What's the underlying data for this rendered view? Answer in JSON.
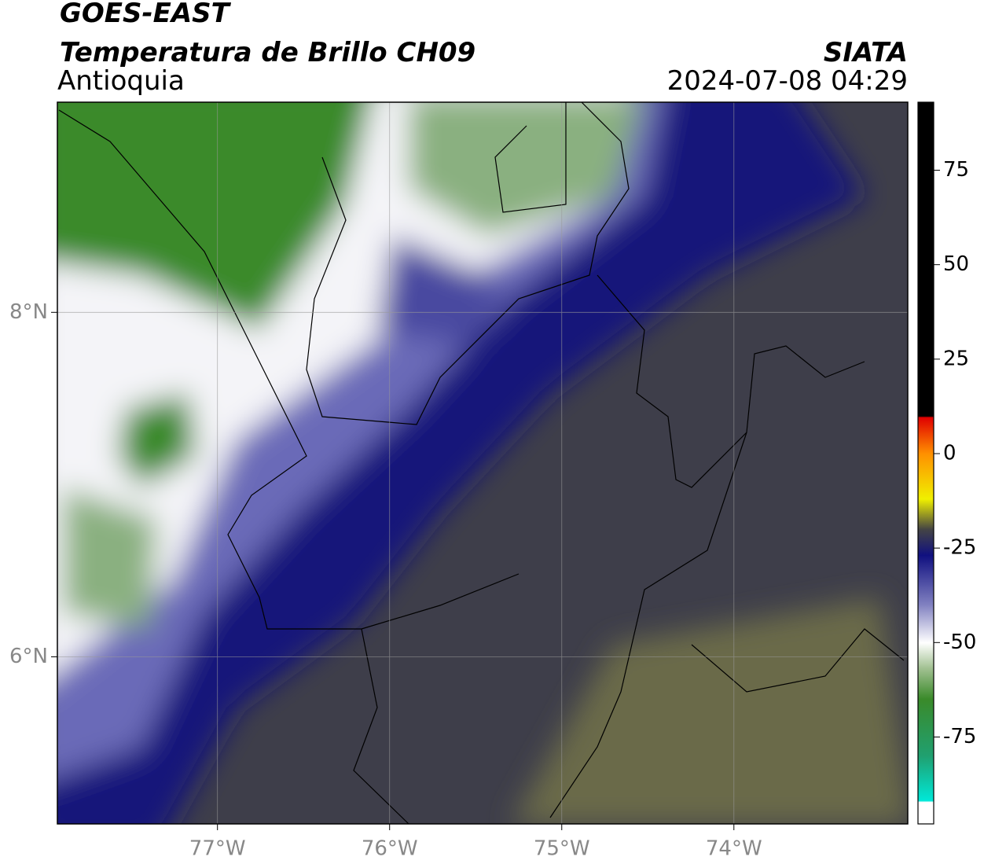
{
  "title": "GOES-EAST",
  "subtitle": "Temperatura de Brillo CH09",
  "region": "Antioquia",
  "source": "SIATA",
  "timestamp": "2024-07-08 04:29",
  "map": {
    "xlim": [
      -77.93,
      -72.99
    ],
    "ylim": [
      5.03,
      9.22
    ],
    "xticks": [
      {
        "value": -77,
        "label": "77°W"
      },
      {
        "value": -76,
        "label": "76°W"
      },
      {
        "value": -75,
        "label": "75°W"
      },
      {
        "value": -74,
        "label": "74°W"
      }
    ],
    "yticks": [
      {
        "value": 8,
        "label": "8°N"
      },
      {
        "value": 6,
        "label": "6°N"
      }
    ],
    "grid": true
  },
  "colorbar": {
    "lim": [
      -98,
      93
    ],
    "ticks": [
      75,
      50,
      25,
      0,
      -25,
      -50,
      -75
    ]
  }
}
